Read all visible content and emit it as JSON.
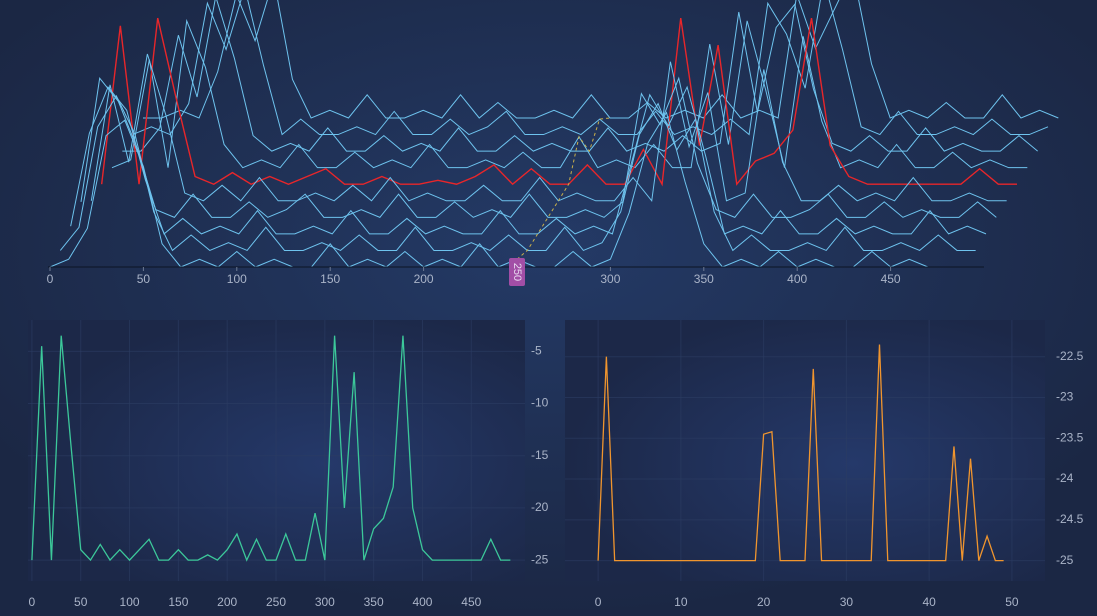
{
  "chart_data": [
    {
      "type": "waterfall",
      "xlim": [
        0,
        500
      ],
      "ylim": [
        -25,
        -3
      ],
      "xticks": [
        0,
        50,
        100,
        150,
        200,
        300,
        350,
        400,
        450
      ],
      "cursor_x": 250,
      "highlight": 5,
      "color": "#6ec3ee",
      "highlight_color": "#e8262a",
      "cursor_color": "#c9b04a",
      "x": [
        0,
        10,
        20,
        30,
        40,
        50,
        60,
        70,
        80,
        90,
        100,
        110,
        120,
        130,
        140,
        150,
        160,
        170,
        180,
        190,
        200,
        210,
        220,
        230,
        240,
        250,
        260,
        270,
        280,
        290,
        300,
        310,
        320,
        330,
        340,
        350,
        360,
        370,
        380,
        390,
        400,
        410,
        420,
        430,
        440,
        450,
        460,
        470,
        480,
        490
      ],
      "series": [
        {
          "values": [
            -25,
            -24,
            -20,
            -8,
            -6,
            -12,
            -22,
            -25,
            -24,
            -25,
            -23,
            -25,
            -24,
            -25,
            -25,
            -22,
            -25,
            -24,
            -25,
            -23,
            -25,
            -24,
            -25,
            -22,
            -25,
            -24,
            -25,
            -25,
            -23,
            -25,
            -24,
            -18,
            -9,
            -5,
            -14,
            -22,
            -25,
            -24,
            -25,
            -23,
            -25,
            -24,
            -25,
            -25,
            -23,
            -25,
            -24,
            -25,
            -25,
            -25
          ]
        },
        {
          "values": [
            -25,
            -22,
            -9,
            -5,
            -10,
            -20,
            -25,
            -23,
            -25,
            -24,
            -25,
            -22,
            -25,
            -25,
            -24,
            -25,
            -23,
            -25,
            -25,
            -22,
            -25,
            -25,
            -24,
            -25,
            -23,
            -25,
            -25,
            -22,
            -25,
            -24,
            -20,
            -10,
            -6,
            -12,
            -8,
            -20,
            -25,
            -23,
            -25,
            -25,
            -24,
            -25,
            -22,
            -25,
            -25,
            -24,
            -25,
            -23,
            -25,
            -25
          ]
        },
        {
          "values": [
            -24,
            -12,
            -6,
            -9,
            -18,
            -25,
            -23,
            -25,
            -24,
            -25,
            -22,
            -25,
            -25,
            -24,
            -25,
            -22,
            -25,
            -25,
            -23,
            -25,
            -24,
            -25,
            -25,
            -22,
            -25,
            -25,
            -23,
            -25,
            -24,
            -25,
            -16,
            -7,
            -11,
            -6,
            -15,
            -25,
            -24,
            -25,
            -22,
            -25,
            -25,
            -23,
            -25,
            -24,
            -25,
            -25,
            -22,
            -25,
            -24,
            -25
          ]
        },
        {
          "values": [
            -23,
            -7,
            -10,
            -16,
            -24,
            -25,
            -22,
            -25,
            -25,
            -23,
            -25,
            -24,
            -22,
            -25,
            -25,
            -24,
            -25,
            -22,
            -25,
            -25,
            -23,
            -25,
            -24,
            -25,
            -22,
            -25,
            -25,
            -24,
            -25,
            -23,
            -9,
            -13,
            -7,
            -18,
            -24,
            -25,
            -22,
            -25,
            -25,
            -24,
            -22,
            -25,
            -25,
            -23,
            -25,
            -24,
            -25,
            -25,
            -23,
            -25
          ]
        },
        {
          "values": [
            -25,
            -10,
            -20,
            -6,
            -14,
            -24,
            -25,
            -23,
            -25,
            -22,
            -25,
            -25,
            -24,
            -25,
            -23,
            -25,
            -22,
            -25,
            -24,
            -25,
            -25,
            -23,
            -25,
            -25,
            -22,
            -25,
            -24,
            -25,
            -25,
            -22,
            -25,
            -7,
            -18,
            -11,
            -25,
            -24,
            -8,
            -20,
            -25,
            -25,
            -23,
            -25,
            -24,
            -25,
            -22,
            -25,
            -25,
            -24,
            -25,
            -25
          ]
        },
        {
          "values": [
            -25,
            -4.5,
            -25,
            -3.5,
            -14,
            -24,
            -25,
            -23.5,
            -25,
            -24,
            -25,
            -24,
            -23,
            -25,
            -25,
            -24,
            -25,
            -25,
            -24.5,
            -25,
            -24,
            -22.5,
            -25,
            -23,
            -25,
            -25,
            -22.5,
            -25,
            -25,
            -20.5,
            -25,
            -3.5,
            -20,
            -7,
            -25,
            -22,
            -21,
            -18,
            -3.5,
            -20,
            -24,
            -25,
            -25,
            -25,
            -25,
            -25,
            -25,
            -23,
            -25,
            -25
          ]
        },
        {
          "values": [
            -25,
            -24,
            -11,
            -25,
            -6,
            -12,
            -22,
            -25,
            -24,
            -25,
            -22,
            -25,
            -25,
            -23,
            -25,
            -24,
            -25,
            -22,
            -25,
            -25,
            -24,
            -25,
            -23,
            -25,
            -25,
            -21,
            -25,
            -24,
            -25,
            -22,
            -25,
            -25,
            -9,
            -22,
            -6,
            -15,
            -25,
            -8,
            -19,
            -25,
            -24,
            -25,
            -22,
            -25,
            -25,
            -23,
            -25,
            -24,
            -25,
            -25
          ]
        },
        {
          "values": [
            -25,
            -25,
            -22,
            -10,
            -18,
            -5,
            -13,
            -23,
            -25,
            -24,
            -25,
            -22,
            -25,
            -25,
            -23,
            -25,
            -24,
            -25,
            -22,
            -25,
            -25,
            -23,
            -25,
            -24,
            -25,
            -25,
            -22,
            -25,
            -24,
            -25,
            -23,
            -25,
            -24,
            -7,
            -20,
            -9,
            -6,
            -17,
            -24,
            -25,
            -23,
            -25,
            -25,
            -22,
            -25,
            -24,
            -25,
            -25,
            -23,
            -25
          ]
        },
        {
          "values": [
            -25,
            -24,
            -25,
            -21,
            -8,
            -14,
            -6,
            -16,
            -25,
            -23,
            -25,
            -25,
            -24,
            -25,
            -22,
            -25,
            -25,
            -23,
            -25,
            -24,
            -22,
            -25,
            -25,
            -24,
            -25,
            -23,
            -25,
            -25,
            -22,
            -25,
            -24,
            -25,
            -23,
            -25,
            -8,
            -12,
            -19,
            -5,
            -14,
            -24,
            -25,
            -22,
            -25,
            -25,
            -24,
            -25,
            -23,
            -25,
            -25,
            -24
          ]
        },
        {
          "values": [
            -25,
            -25,
            -24,
            -25,
            -19,
            -9,
            -15,
            -7,
            -20,
            -25,
            -24,
            -25,
            -22,
            -25,
            -25,
            -24,
            -25,
            -22,
            -25,
            -23,
            -25,
            -25,
            -24,
            -25,
            -22,
            -25,
            -25,
            -23,
            -25,
            -24,
            -25,
            -22,
            -25,
            -24,
            -25,
            -9,
            -16,
            -11,
            -6,
            -18,
            -25,
            -24,
            -25,
            -23,
            -25,
            -25,
            -22,
            -25,
            -24,
            -25
          ]
        }
      ]
    },
    {
      "type": "line",
      "color": "#3cc89a",
      "xlim": [
        -4,
        505
      ],
      "ylim": [
        -27,
        -2
      ],
      "xticks": [
        0,
        50,
        100,
        150,
        200,
        250,
        300,
        350,
        400,
        450
      ],
      "yticks": [
        -5,
        -10,
        -15,
        -20,
        -25
      ],
      "x": [
        0,
        10,
        20,
        30,
        40,
        50,
        60,
        70,
        80,
        90,
        100,
        110,
        120,
        130,
        140,
        150,
        160,
        170,
        180,
        190,
        200,
        210,
        220,
        230,
        240,
        250,
        260,
        270,
        280,
        290,
        300,
        310,
        320,
        330,
        340,
        350,
        360,
        370,
        380,
        390,
        400,
        410,
        420,
        430,
        440,
        450,
        460,
        470,
        480,
        490
      ],
      "values": [
        -25,
        -4.5,
        -25,
        -3.5,
        -14,
        -24,
        -25,
        -23.5,
        -25,
        -24,
        -25,
        -24,
        -23,
        -25,
        -25,
        -24,
        -25,
        -25,
        -24.5,
        -25,
        -24,
        -22.5,
        -25,
        -23,
        -25,
        -25,
        -22.5,
        -25,
        -25,
        -20.5,
        -25,
        -3.5,
        -20,
        -7,
        -25,
        -22,
        -21,
        -18,
        -3.5,
        -20,
        -24,
        -25,
        -25,
        -25,
        -25,
        -25,
        -25,
        -23,
        -25,
        -25
      ]
    },
    {
      "type": "line",
      "color": "#f0952e",
      "xlim": [
        -4,
        54
      ],
      "ylim": [
        -25.25,
        -22.05
      ],
      "xticks": [
        0,
        10,
        20,
        30,
        40,
        50
      ],
      "yticks": [
        -22.5,
        -23,
        -23.5,
        -24,
        -24.5,
        -25
      ],
      "x": [
        0,
        1,
        2,
        3,
        4,
        5,
        6,
        7,
        8,
        9,
        10,
        11,
        12,
        13,
        14,
        15,
        16,
        17,
        18,
        19,
        20,
        21,
        22,
        23,
        24,
        25,
        26,
        27,
        28,
        29,
        30,
        31,
        32,
        33,
        34,
        35,
        36,
        37,
        38,
        39,
        40,
        41,
        42,
        43,
        44,
        45,
        46,
        47,
        48,
        49
      ],
      "values": [
        -25,
        -22.5,
        -25,
        -25,
        -25,
        -25,
        -25,
        -25,
        -25,
        -25,
        -25,
        -25,
        -25,
        -25,
        -25,
        -25,
        -25,
        -25,
        -25,
        -25,
        -23.45,
        -23.42,
        -25,
        -25,
        -25,
        -25,
        -22.65,
        -25,
        -25,
        -25,
        -25,
        -25,
        -25,
        -25,
        -22.35,
        -25,
        -25,
        -25,
        -25,
        -25,
        -25,
        -25,
        -25,
        -23.6,
        -25,
        -23.75,
        -25,
        -24.7,
        -25,
        -25
      ]
    }
  ]
}
